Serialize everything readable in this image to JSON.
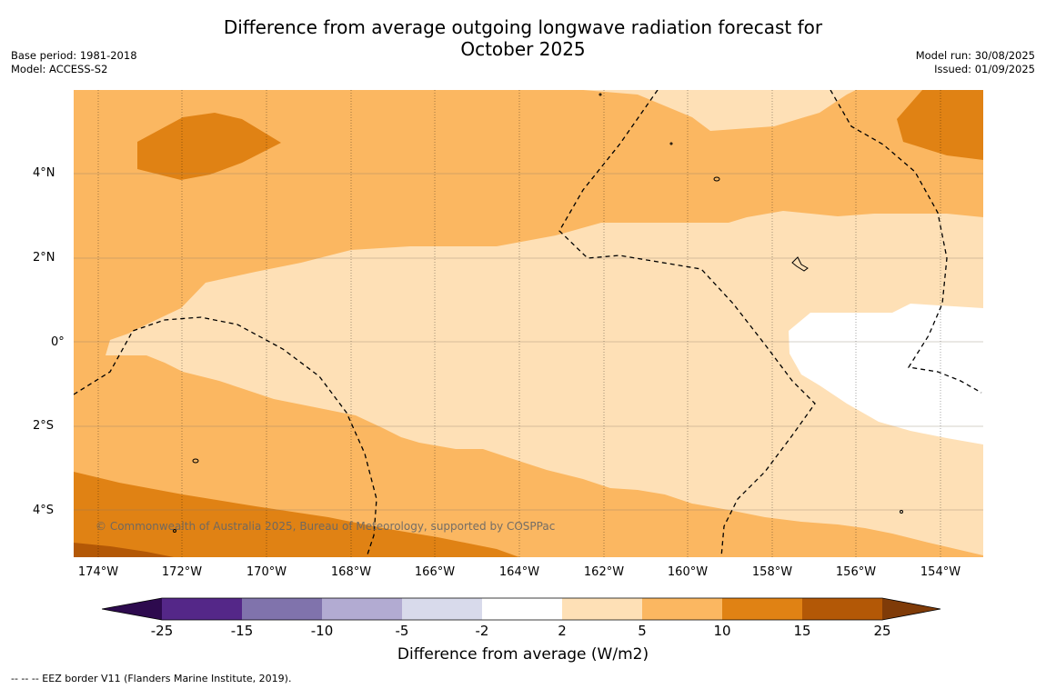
{
  "title": {
    "line1": "Difference from average outgoing longwave radiation forecast for",
    "line2": "October 2025"
  },
  "meta_left": {
    "base_period": "Base period: 1981-2018",
    "model": "Model: ACCESS-S2"
  },
  "meta_right": {
    "model_run": "Model run: 30/08/2025",
    "issued": "Issued: 01/09/2025"
  },
  "lat_ticks": [
    "4°N",
    "2°N",
    "0°",
    "2°S",
    "4°S"
  ],
  "lon_ticks": [
    "174°W",
    "172°W",
    "170°W",
    "168°W",
    "166°W",
    "164°W",
    "162°W",
    "160°W",
    "158°W",
    "156°W",
    "154°W"
  ],
  "copyright": "© Commonwealth of Australia 2025, Bureau of Meteorology, supported by COSPPac",
  "colorbar": {
    "title": "Difference from average (W/m2)",
    "labels": [
      "-25",
      "-15",
      "-10",
      "-5",
      "-2",
      "2",
      "5",
      "10",
      "15",
      "25"
    ],
    "colors": {
      "lt_-25": "#2d0a4e",
      "-25_-15": "#542788",
      "-15_-10": "#8073ac",
      "-10_-5": "#b2abd2",
      "-5_-2": "#d8daeb",
      "-2_2": "#ffffff",
      "2_5": "#fee0b6",
      "5_10": "#fbb761",
      "10_15": "#e08214",
      "15_25": "#b35806",
      "gt_25": "#7f3b08"
    }
  },
  "legend_note": "--  --  -- EEZ border V11 (Flanders Marine Institute, 2019)."
}
